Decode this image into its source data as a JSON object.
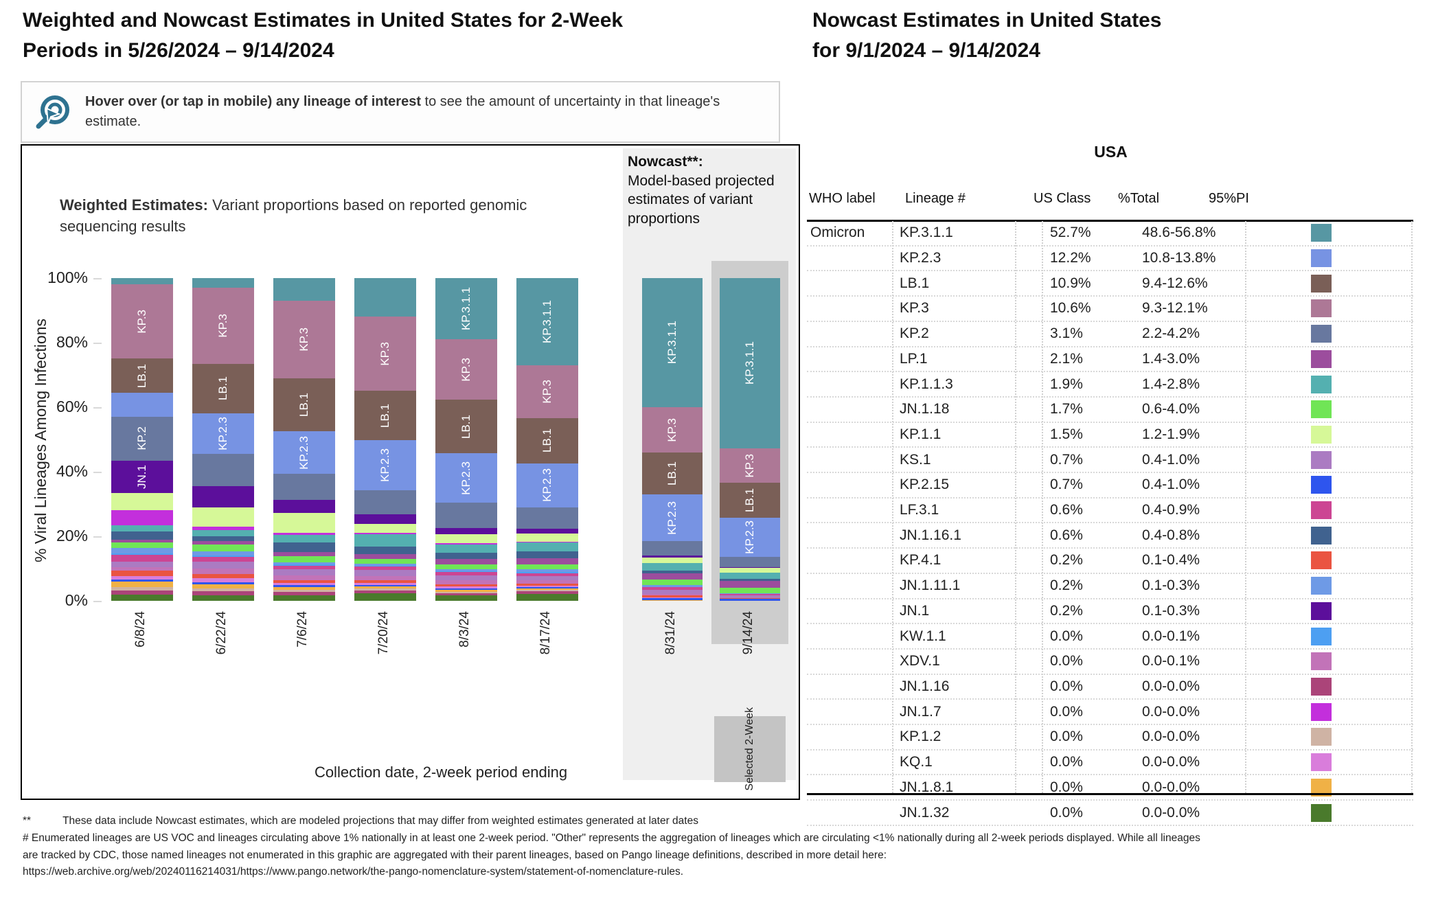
{
  "left_title": {
    "line1": "Weighted and Nowcast Estimates in United States for 2-Week",
    "line2": "Periods in 5/26/2024 – 9/14/2024"
  },
  "right_title": {
    "line1": "Nowcast Estimates in United States",
    "line2": "for 9/1/2024 – 9/14/2024"
  },
  "hover_note": {
    "bold": "Hover over (or tap in mobile) any lineage of interest",
    "rest": " to see the amount of uncertainty in that lineage's estimate.",
    "icon": "hover-target-cursor-icon",
    "icon_color": "#2e7290"
  },
  "chart": {
    "subtitle_bold": "Weighted Estimates:",
    "subtitle_rest": " Variant proportions based on reported genomic sequencing results",
    "nowcast_bold": "Nowcast**:",
    "nowcast_rest": " Model-based projected estimates of variant proportions",
    "ylabel": "% Viral Lineages Among Infections",
    "xlabel": "Collection date, 2-week period ending",
    "y_ticks": [
      "100%",
      "80%",
      "60%",
      "40%",
      "20%",
      "0%"
    ],
    "selected_label_line1": "Selected",
    "selected_label_line2": "2-Week"
  },
  "chart_data": {
    "type": "stacked_bar",
    "unit": "percent",
    "ylim": [
      0,
      100
    ],
    "note": "Stacked variant proportion bars; segment order below is top-to-bottom in each bar",
    "lineages": [
      {
        "name": "KP.3.1.1",
        "color": "#5797a3"
      },
      {
        "name": "KP.3",
        "color": "#ad7896"
      },
      {
        "name": "LB.1",
        "color": "#7a5f57"
      },
      {
        "name": "KP.2.3",
        "color": "#7793e3"
      },
      {
        "name": "KP.2",
        "color": "#68789f"
      },
      {
        "name": "JN.1",
        "color": "#5c0f9b"
      },
      {
        "name": "KP.1.1",
        "color": "#d6f898"
      },
      {
        "name": "JN.1.7",
        "color": "#c32fdc"
      },
      {
        "name": "KP.1.1.3",
        "color": "#54b0b0"
      },
      {
        "name": "JN.1.16.1",
        "color": "#40628f"
      },
      {
        "name": "LP.1",
        "color": "#9c4d9d"
      },
      {
        "name": "JN.1.18",
        "color": "#70e556"
      },
      {
        "name": "JN.1.11.1",
        "color": "#6e9ae6"
      },
      {
        "name": "KW.1.1",
        "color": "#4d9ff2"
      },
      {
        "name": "LF.3.1",
        "color": "#cc4593"
      },
      {
        "name": "KS.1",
        "color": "#ab7bc2"
      },
      {
        "name": "XDV.1",
        "color": "#c273b8"
      },
      {
        "name": "KP.4.1",
        "color": "#ea5441"
      },
      {
        "name": "KQ.1",
        "color": "#d97ddb"
      },
      {
        "name": "KP.2.15",
        "color": "#2e55ee"
      },
      {
        "name": "JN.1.8.1",
        "color": "#f0b146"
      },
      {
        "name": "KP.1.2",
        "color": "#cfb3a4"
      },
      {
        "name": "JN.1.16",
        "color": "#ab4479"
      },
      {
        "name": "JN.1.32",
        "color": "#4a7a2c"
      }
    ],
    "bars": [
      {
        "date": "6/8/24",
        "group": "weighted",
        "selected": false,
        "labeled": [
          "KP.3",
          "LB.1",
          "KP.2",
          "JN.1"
        ],
        "values": [
          2,
          23,
          10.5,
          7.5,
          13.5,
          10,
          5.5,
          4.5,
          2,
          2.5,
          1,
          1.7,
          1.6,
          0.4,
          2.2,
          1.6,
          1.2,
          1.6,
          1.1,
          0.6,
          1.7,
          1.2,
          1.3,
          1.8
        ]
      },
      {
        "date": "6/22/24",
        "group": "weighted",
        "selected": false,
        "labeled": [
          "KP.3",
          "LB.1",
          "KP.2.3"
        ],
        "values": [
          3,
          23.5,
          15.5,
          12.5,
          10,
          6.5,
          6,
          1,
          2,
          1.5,
          1,
          2.2,
          1.2,
          0.4,
          1.6,
          2.2,
          1.6,
          1.4,
          1.1,
          0.7,
          1.2,
          1,
          1.2,
          1.7
        ]
      },
      {
        "date": "7/6/24",
        "group": "weighted",
        "selected": false,
        "labeled": [
          "KP.3",
          "LB.1",
          "KP.2.3"
        ],
        "values": [
          7,
          24,
          16.5,
          13.2,
          8,
          4,
          6.3,
          0.5,
          2.5,
          3,
          1.2,
          1.8,
          0.8,
          0.3,
          1.2,
          1.8,
          1.5,
          0.8,
          0.8,
          0.5,
          0.9,
          0.7,
          1,
          1.7
        ]
      },
      {
        "date": "7/20/24",
        "group": "weighted",
        "selected": false,
        "labeled": [
          "KP.3",
          "LB.1",
          "KP.2.3"
        ],
        "values": [
          12,
          23,
          15.3,
          15.5,
          7.4,
          3,
          2.8,
          0.4,
          3.9,
          2.2,
          1.5,
          1.5,
          0.6,
          0.3,
          1.1,
          1.8,
          1.4,
          0.7,
          0.7,
          0.5,
          0.7,
          0.5,
          0.9,
          2.3
        ]
      },
      {
        "date": "8/3/24",
        "group": "weighted",
        "selected": false,
        "labeled": [
          "KP.3.1.1",
          "KP.3",
          "LB.1",
          "KP.2.3"
        ],
        "values": [
          19,
          18.7,
          16.6,
          15.3,
          7.8,
          2,
          2.8,
          0.3,
          2.6,
          2,
          1.6,
          1.6,
          0.5,
          0.3,
          1,
          1.6,
          1.3,
          0.6,
          0.6,
          0.4,
          0.6,
          0.4,
          0.8,
          1.6
        ]
      },
      {
        "date": "8/17/24",
        "group": "weighted",
        "selected": false,
        "labeled": [
          "KP.3.1.1",
          "KP.3",
          "LB.1",
          "KP.2.3"
        ],
        "values": [
          27,
          16.4,
          14,
          13.6,
          6.7,
          1.5,
          2.5,
          0.2,
          2.8,
          2.2,
          1.8,
          1.5,
          0.9,
          0.3,
          0.9,
          1.4,
          1.1,
          0.5,
          0.5,
          0.4,
          0.5,
          0.4,
          0.7,
          2.2
        ]
      },
      {
        "date": "8/31/24",
        "group": "nowcast",
        "selected": false,
        "labeled": [
          "KP.3.1.1",
          "KP.3",
          "LB.1",
          "KP.2.3"
        ],
        "values": [
          40,
          14,
          13,
          14.5,
          4.5,
          0.5,
          1.8,
          0.1,
          2.2,
          0.8,
          2,
          1.8,
          0.5,
          0.1,
          0.8,
          1.2,
          0.6,
          0.5,
          0.3,
          0.6,
          0.2,
          0,
          0,
          0
        ]
      },
      {
        "date": "9/14/24",
        "group": "nowcast",
        "selected": true,
        "labeled": [
          "KP.3.1.1",
          "KP.3",
          "LB.1",
          "KP.2.3"
        ],
        "values": [
          52.7,
          10.6,
          10.9,
          12.2,
          3.1,
          0.2,
          1.5,
          0,
          1.9,
          0.6,
          2.1,
          1.7,
          0.2,
          0,
          0.6,
          0.7,
          0,
          0.2,
          0,
          0.7,
          0,
          0,
          0,
          0
        ]
      }
    ]
  },
  "table": {
    "region": "USA",
    "headers": [
      "WHO label",
      "Lineage #",
      "US Class",
      "%Total",
      "95%PI"
    ],
    "who_label": "Omicron",
    "rows": [
      {
        "lineage": "KP.3.1.1",
        "us_class": "",
        "total": "52.7%",
        "pi": "48.6-56.8%"
      },
      {
        "lineage": "KP.2.3",
        "us_class": "",
        "total": "12.2%",
        "pi": "10.8-13.8%"
      },
      {
        "lineage": "LB.1",
        "us_class": "",
        "total": "10.9%",
        "pi": "9.4-12.6%"
      },
      {
        "lineage": "KP.3",
        "us_class": "",
        "total": "10.6%",
        "pi": "9.3-12.1%"
      },
      {
        "lineage": "KP.2",
        "us_class": "",
        "total": "3.1%",
        "pi": "2.2-4.2%"
      },
      {
        "lineage": "LP.1",
        "us_class": "",
        "total": "2.1%",
        "pi": "1.4-3.0%"
      },
      {
        "lineage": "KP.1.1.3",
        "us_class": "",
        "total": "1.9%",
        "pi": "1.4-2.8%"
      },
      {
        "lineage": "JN.1.18",
        "us_class": "",
        "total": "1.7%",
        "pi": "0.6-4.0%"
      },
      {
        "lineage": "KP.1.1",
        "us_class": "",
        "total": "1.5%",
        "pi": "1.2-1.9%"
      },
      {
        "lineage": "KS.1",
        "us_class": "",
        "total": "0.7%",
        "pi": "0.4-1.0%"
      },
      {
        "lineage": "KP.2.15",
        "us_class": "",
        "total": "0.7%",
        "pi": "0.4-1.0%"
      },
      {
        "lineage": "LF.3.1",
        "us_class": "",
        "total": "0.6%",
        "pi": "0.4-0.9%"
      },
      {
        "lineage": "JN.1.16.1",
        "us_class": "",
        "total": "0.6%",
        "pi": "0.4-0.8%"
      },
      {
        "lineage": "KP.4.1",
        "us_class": "",
        "total": "0.2%",
        "pi": "0.1-0.4%"
      },
      {
        "lineage": "JN.1.11.1",
        "us_class": "",
        "total": "0.2%",
        "pi": "0.1-0.3%"
      },
      {
        "lineage": "JN.1",
        "us_class": "",
        "total": "0.2%",
        "pi": "0.1-0.3%"
      },
      {
        "lineage": "KW.1.1",
        "us_class": "",
        "total": "0.0%",
        "pi": "0.0-0.1%"
      },
      {
        "lineage": "XDV.1",
        "us_class": "",
        "total": "0.0%",
        "pi": "0.0-0.1%"
      },
      {
        "lineage": "JN.1.16",
        "us_class": "",
        "total": "0.0%",
        "pi": "0.0-0.0%"
      },
      {
        "lineage": "JN.1.7",
        "us_class": "",
        "total": "0.0%",
        "pi": "0.0-0.0%"
      },
      {
        "lineage": "KP.1.2",
        "us_class": "",
        "total": "0.0%",
        "pi": "0.0-0.0%"
      },
      {
        "lineage": "KQ.1",
        "us_class": "",
        "total": "0.0%",
        "pi": "0.0-0.0%"
      },
      {
        "lineage": "JN.1.8.1",
        "us_class": "",
        "total": "0.0%",
        "pi": "0.0-0.0%"
      },
      {
        "lineage": "JN.1.32",
        "us_class": "",
        "total": "0.0%",
        "pi": "0.0-0.0%"
      }
    ]
  },
  "footnotes": {
    "line1_prefix": "**",
    "line1": "These data include Nowcast estimates, which are modeled projections that may differ from weighted estimates generated at later dates",
    "line2": "# Enumerated lineages are US VOC and lineages circulating above 1% nationally in at least one 2-week period. \"Other\" represents the aggregation of lineages which are circulating <1% nationally during all 2-week periods displayed.  While all lineages",
    "line3": "are tracked by CDC, those named lineages not enumerated in this graphic are aggregated with their parent lineages, based on Pango lineage definitions, described in more detail here:",
    "line4": "https://web.archive.org/web/20240116214031/https://www.pango.network/the-pango-nomenclature-system/statement-of-nomenclature-rules."
  }
}
